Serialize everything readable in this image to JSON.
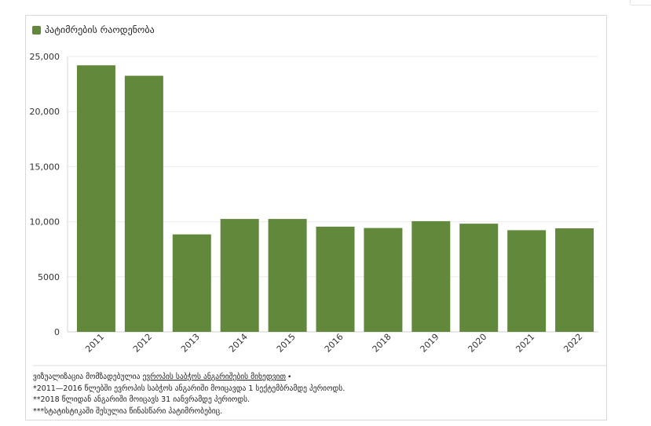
{
  "chart_data": {
    "type": "bar",
    "categories": [
      "2011",
      "2012",
      "2013",
      "2014",
      "2015",
      "2016",
      "2018",
      "2019",
      "2020",
      "2021",
      "2022"
    ],
    "series": [
      {
        "name": "პატიმრების რაოდენობა",
        "color": "#62883c",
        "values": [
          24200,
          23250,
          8850,
          10250,
          10250,
          9550,
          9430,
          10050,
          9820,
          9230,
          9400
        ]
      }
    ],
    "ylim": [
      0,
      25000
    ],
    "yticks": [
      0,
      5000,
      10000,
      15000,
      20000,
      25000
    ],
    "ytick_labels": [
      "0",
      "5000",
      "10,000",
      "15,000",
      "20,000",
      "25,000"
    ],
    "grid": true,
    "legend_position": "top-left"
  },
  "notes": {
    "source_prefix": "ვიზუალიზაცია მომზადებულია ",
    "source_link": "ევროპის საბჭოს ანგარიშების მიხედვით",
    "source_suffix": " •",
    "line1": "*2011—2016 წლებში ევროპის საბჭოს ანგარიში მოიცავდა 1 სექტემბრამდე პერიოდს.",
    "line2": "**2018 წლიდან ანგარიში მოიცავს 31 იანვრამდე პერიოდს.",
    "line3": "***სტატისტიკაში შესულია წინასწარი პატიმრობებიც."
  }
}
